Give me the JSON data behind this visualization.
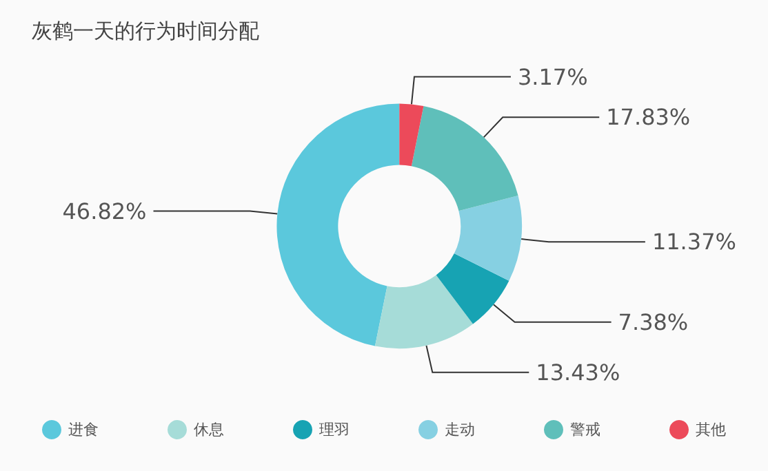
{
  "chart_data": {
    "type": "donut",
    "title": "灰鹤一天的行为时间分配",
    "categories": [
      "进食",
      "休息",
      "理羽",
      "走动",
      "警戒",
      "其他"
    ],
    "values": [
      46.82,
      13.43,
      7.38,
      11.37,
      17.83,
      3.17
    ],
    "value_labels": [
      "46.82%",
      "13.43%",
      "7.38%",
      "11.37%",
      "17.83%",
      "3.17%"
    ],
    "colors": [
      "#5bc8dc",
      "#a6dcd8",
      "#17a3b3",
      "#86d0e2",
      "#5fbfba",
      "#ec4a5a"
    ],
    "legend": "bottom"
  }
}
